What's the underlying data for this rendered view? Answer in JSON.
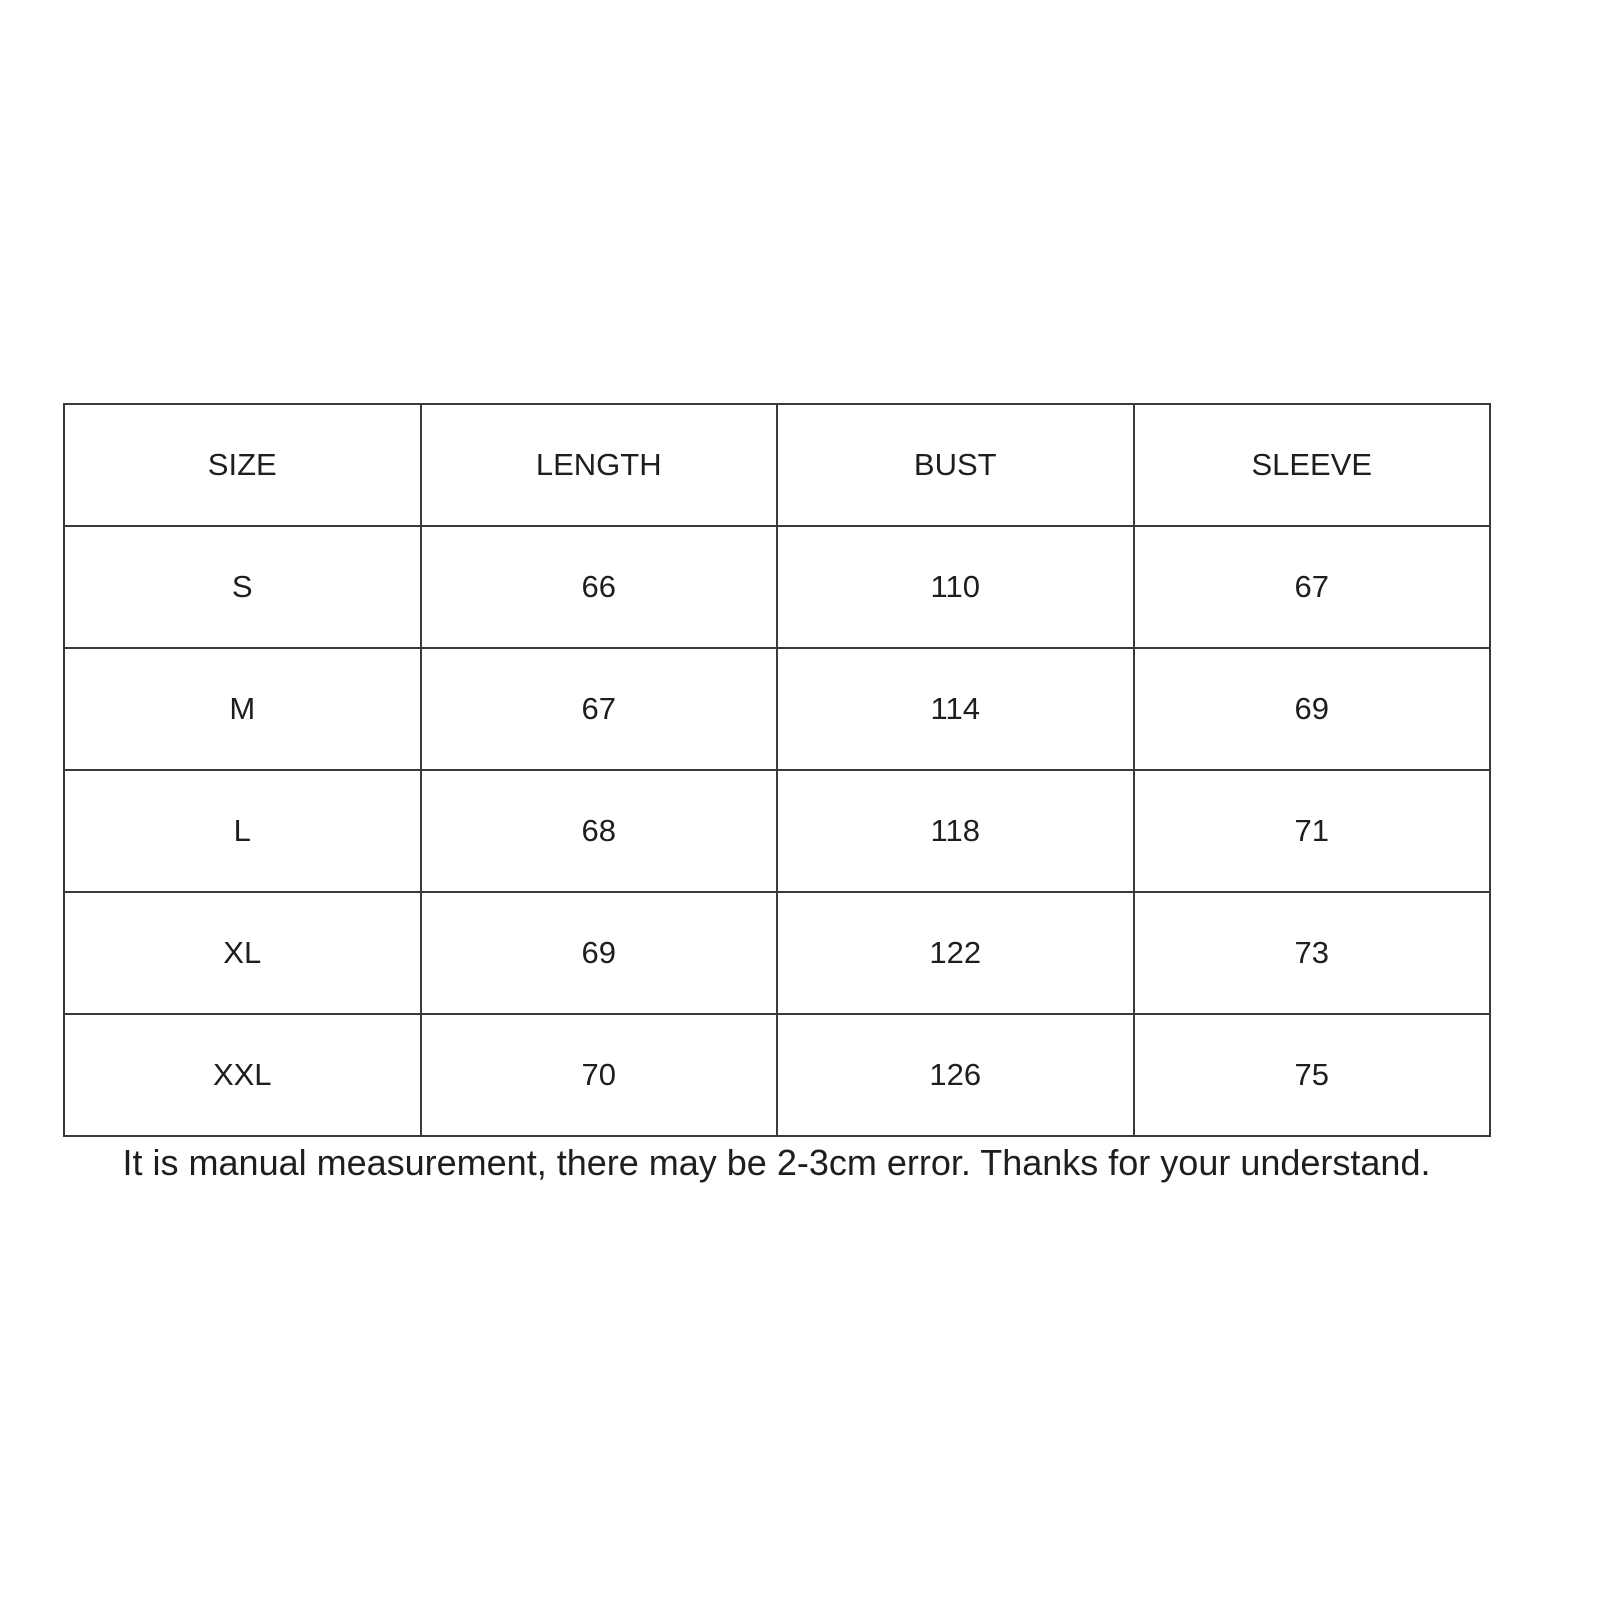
{
  "table": {
    "headers": [
      "SIZE",
      "LENGTH",
      "BUST",
      "SLEEVE"
    ],
    "rows": [
      [
        "S",
        "66",
        "110",
        "67"
      ],
      [
        "M",
        "67",
        "114",
        "69"
      ],
      [
        "L",
        "68",
        "118",
        "71"
      ],
      [
        "XL",
        "69",
        "122",
        "73"
      ],
      [
        "XXL",
        "70",
        "126",
        "75"
      ]
    ]
  },
  "caption": "It is manual measurement, there may be 2-3cm error. Thanks for your understand."
}
